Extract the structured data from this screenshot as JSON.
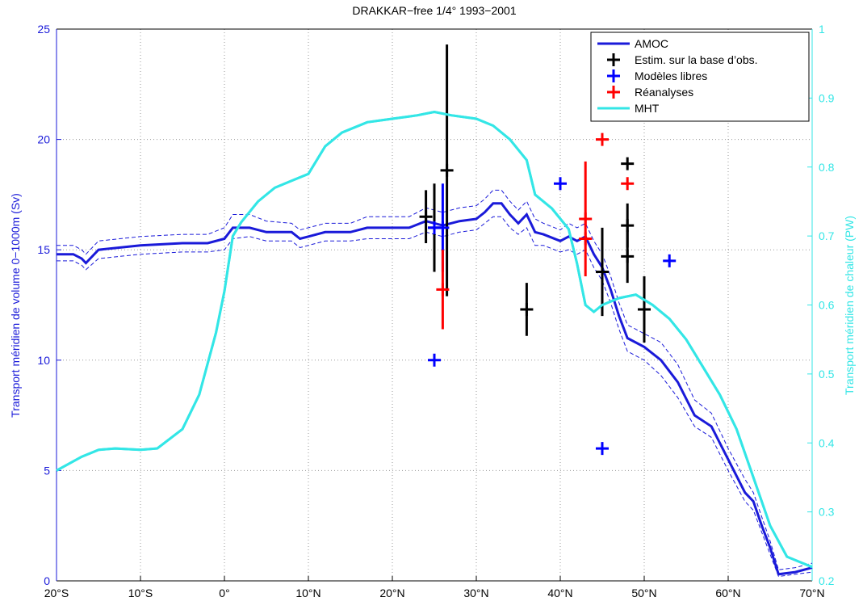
{
  "chart_data": {
    "type": "line",
    "title": "DRAKKAR−free 1/4° 1993−2001",
    "ylabel": "Transport méridien de volume 0−1000m (Sv)",
    "y2label": "Transport méridien de chaleur (PW)",
    "xlim": [
      -20,
      70
    ],
    "xticks": [
      {
        "value": -20,
        "label": "20°S"
      },
      {
        "value": -10,
        "label": "10°S"
      },
      {
        "value": 0,
        "label": "0°"
      },
      {
        "value": 10,
        "label": "10°N"
      },
      {
        "value": 20,
        "label": "20°N"
      },
      {
        "value": 30,
        "label": "30°N"
      },
      {
        "value": 40,
        "label": "40°N"
      },
      {
        "value": 50,
        "label": "50°N"
      },
      {
        "value": 60,
        "label": "60°N"
      },
      {
        "value": 70,
        "label": "70°N"
      }
    ],
    "ylim": [
      0,
      25
    ],
    "yticks": [
      0,
      5,
      10,
      15,
      20,
      25
    ],
    "y2lim": [
      0.2,
      1
    ],
    "y2ticks": [
      0.2,
      0.3,
      0.4,
      0.5,
      0.6,
      0.7,
      0.8,
      0.9,
      1
    ],
    "grid": true,
    "legend": "upper right",
    "series": [
      {
        "name": "AMOC",
        "type": "line",
        "color": "#1a1ad9",
        "x": [
          -20,
          -18,
          -17,
          -16.5,
          -15,
          -10,
          -5,
          -2,
          0,
          1,
          3,
          5,
          8,
          9,
          10,
          12,
          15,
          17,
          20,
          22,
          24,
          26,
          28,
          30,
          31,
          32,
          33,
          34,
          35,
          36,
          37,
          38,
          40,
          41,
          42,
          43,
          44,
          45,
          46,
          47,
          48,
          50,
          52,
          54,
          56,
          58,
          60,
          62,
          63,
          64,
          65,
          66,
          68,
          70
        ],
        "values": [
          14.8,
          14.8,
          14.6,
          14.4,
          15.0,
          15.2,
          15.3,
          15.3,
          15.5,
          16.0,
          16.0,
          15.8,
          15.8,
          15.5,
          15.6,
          15.8,
          15.8,
          16.0,
          16.0,
          16.0,
          16.3,
          16.1,
          16.3,
          16.4,
          16.7,
          17.1,
          17.1,
          16.6,
          16.2,
          16.6,
          15.8,
          15.7,
          15.4,
          15.6,
          15.4,
          15.6,
          14.8,
          14.2,
          13.2,
          12.0,
          11.0,
          10.6,
          10.0,
          9.0,
          7.5,
          7.0,
          5.5,
          4.0,
          3.6,
          2.5,
          1.5,
          0.3,
          0.4,
          0.6
        ],
        "lower": [
          14.5,
          14.5,
          14.3,
          14.1,
          14.6,
          14.8,
          14.9,
          14.9,
          15.0,
          15.5,
          15.6,
          15.4,
          15.4,
          15.1,
          15.2,
          15.4,
          15.4,
          15.5,
          15.5,
          15.5,
          15.8,
          15.6,
          15.8,
          15.9,
          16.2,
          16.5,
          16.5,
          16.0,
          15.7,
          16.0,
          15.2,
          15.2,
          14.9,
          15.0,
          14.8,
          15.0,
          14.2,
          13.6,
          12.6,
          11.4,
          10.4,
          10.0,
          9.3,
          8.3,
          7.0,
          6.5,
          5.0,
          3.6,
          3.2,
          2.2,
          1.2,
          0.2,
          0.3,
          0.4
        ],
        "upper": [
          15.2,
          15.2,
          15.0,
          14.8,
          15.4,
          15.6,
          15.7,
          15.7,
          16.0,
          16.6,
          16.6,
          16.3,
          16.2,
          15.9,
          16.0,
          16.2,
          16.2,
          16.5,
          16.5,
          16.5,
          16.9,
          16.7,
          16.9,
          17.0,
          17.3,
          17.7,
          17.7,
          17.2,
          16.8,
          17.2,
          16.4,
          16.2,
          15.9,
          16.2,
          16.0,
          16.2,
          15.4,
          14.8,
          13.8,
          12.6,
          11.6,
          11.2,
          10.8,
          9.8,
          8.2,
          7.6,
          6.0,
          4.6,
          4.0,
          2.9,
          1.8,
          0.5,
          0.6,
          0.8
        ]
      },
      {
        "name": "Estim. sur la base d’obs.",
        "type": "points",
        "color": "#000000",
        "x": [
          24,
          25,
          26.5,
          36,
          45,
          48,
          48,
          48,
          50
        ],
        "values": [
          16.5,
          16.0,
          18.6,
          12.3,
          14.0,
          18.9,
          16.1,
          14.7,
          12.3
        ],
        "errors": [
          1.2,
          2.0,
          5.7,
          1.2,
          2.0,
          null,
          1.0,
          1.2,
          1.5
        ]
      },
      {
        "name": "Modèles libres",
        "type": "points",
        "color": "#0000ff",
        "x": [
          25,
          26,
          40,
          45,
          53,
          25
        ],
        "values": [
          10,
          16,
          18,
          6,
          14.5,
          16
        ],
        "errors": [
          null,
          2.0,
          null,
          null,
          null,
          null
        ]
      },
      {
        "name": "Réanalyses",
        "type": "points",
        "color": "#ff0000",
        "x": [
          26,
          43,
          43,
          45,
          48
        ],
        "values": [
          13.2,
          16.4,
          15.5,
          20,
          18
        ],
        "errors": [
          1.8,
          2.6,
          null,
          null,
          null
        ]
      },
      {
        "name": "MHT",
        "type": "line",
        "axis": "y2",
        "color": "#33e6e6",
        "x": [
          -20,
          -17,
          -15,
          -13,
          -10,
          -8,
          -5,
          -3,
          -1,
          0,
          1,
          2,
          4,
          6,
          8,
          10,
          12,
          14,
          17,
          20,
          23,
          25,
          27,
          30,
          32,
          34,
          36,
          37,
          39,
          41,
          42,
          43,
          44,
          45,
          47,
          49,
          51,
          53,
          55,
          57,
          59,
          61,
          63,
          65,
          67,
          70
        ],
        "values": [
          0.36,
          0.38,
          0.39,
          0.392,
          0.39,
          0.392,
          0.42,
          0.47,
          0.56,
          0.62,
          0.7,
          0.72,
          0.75,
          0.77,
          0.78,
          0.79,
          0.83,
          0.85,
          0.865,
          0.87,
          0.875,
          0.88,
          0.875,
          0.87,
          0.86,
          0.84,
          0.81,
          0.76,
          0.74,
          0.71,
          0.66,
          0.6,
          0.59,
          0.6,
          0.61,
          0.615,
          0.6,
          0.58,
          0.55,
          0.51,
          0.47,
          0.42,
          0.35,
          0.28,
          0.235,
          0.22
        ]
      }
    ]
  }
}
